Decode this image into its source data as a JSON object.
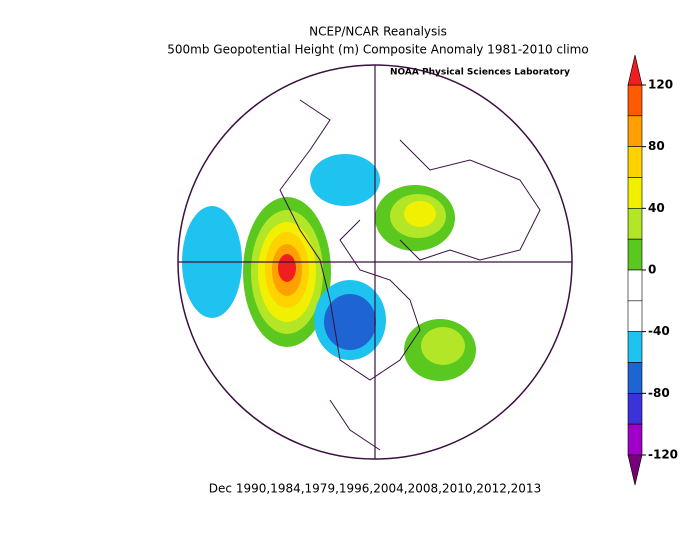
{
  "title": "NCEP/NCAR Reanalysis",
  "subtitle": "500mb Geopotential Height (m) Composite Anomaly 1981-2010 climo",
  "credit": "NOAA Physical Sciences Laboratory",
  "caption": "Dec 1990,1984,1979,1996,2004,2008,2010,2012,2013",
  "colorbar": {
    "lim": [
      -120,
      120
    ],
    "ticks": [
      120,
      80,
      40,
      0,
      -40,
      -80,
      -120
    ],
    "colors": [
      "#ff5a00",
      "#ffa000",
      "#ffd200",
      "#f0f000",
      "#b4e628",
      "#5ac81e",
      "#ffffff",
      "#ffffff",
      "#1ec3f0",
      "#1e64d2",
      "#3c32dc",
      "#a000c8"
    ],
    "over_color": "#f01e1e",
    "under_color": "#780078"
  }
}
